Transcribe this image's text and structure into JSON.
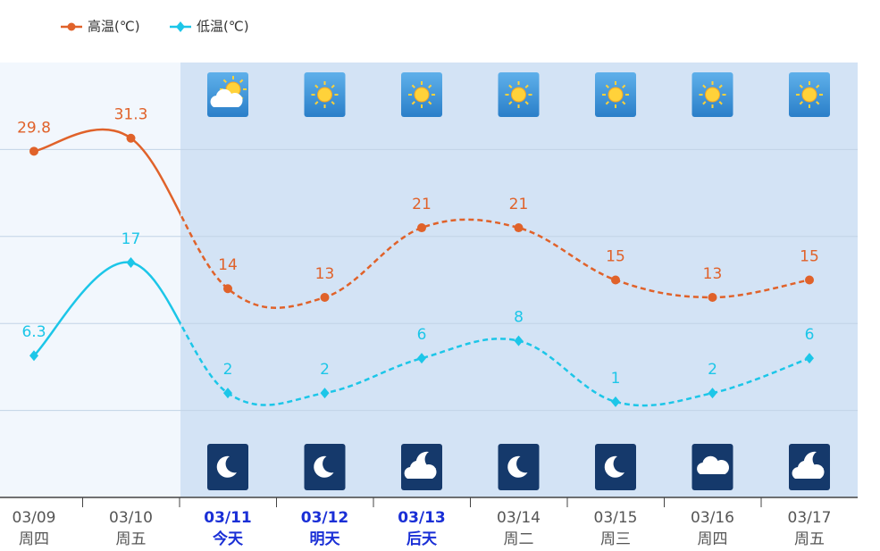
{
  "chart_data": {
    "type": "line",
    "categories": [
      "03/09",
      "03/10",
      "03/11",
      "03/12",
      "03/13",
      "03/14",
      "03/15",
      "03/16",
      "03/17"
    ],
    "weekdays": [
      "周四",
      "周五",
      "今天",
      "明天",
      "后天",
      "周二",
      "周三",
      "周四",
      "周五"
    ],
    "series": [
      {
        "name": "高温(℃)",
        "color": "#e0622a",
        "values": [
          29.8,
          31.3,
          14,
          13,
          21,
          21,
          15,
          13,
          15
        ]
      },
      {
        "name": "低温(℃)",
        "color": "#1cc6e8",
        "values": [
          6.3,
          17,
          2,
          2,
          6,
          8,
          1,
          2,
          6
        ]
      }
    ],
    "ylim": [
      -10,
      40
    ],
    "yticks": [
      0,
      10,
      20,
      30
    ],
    "grid": true
  }
}
